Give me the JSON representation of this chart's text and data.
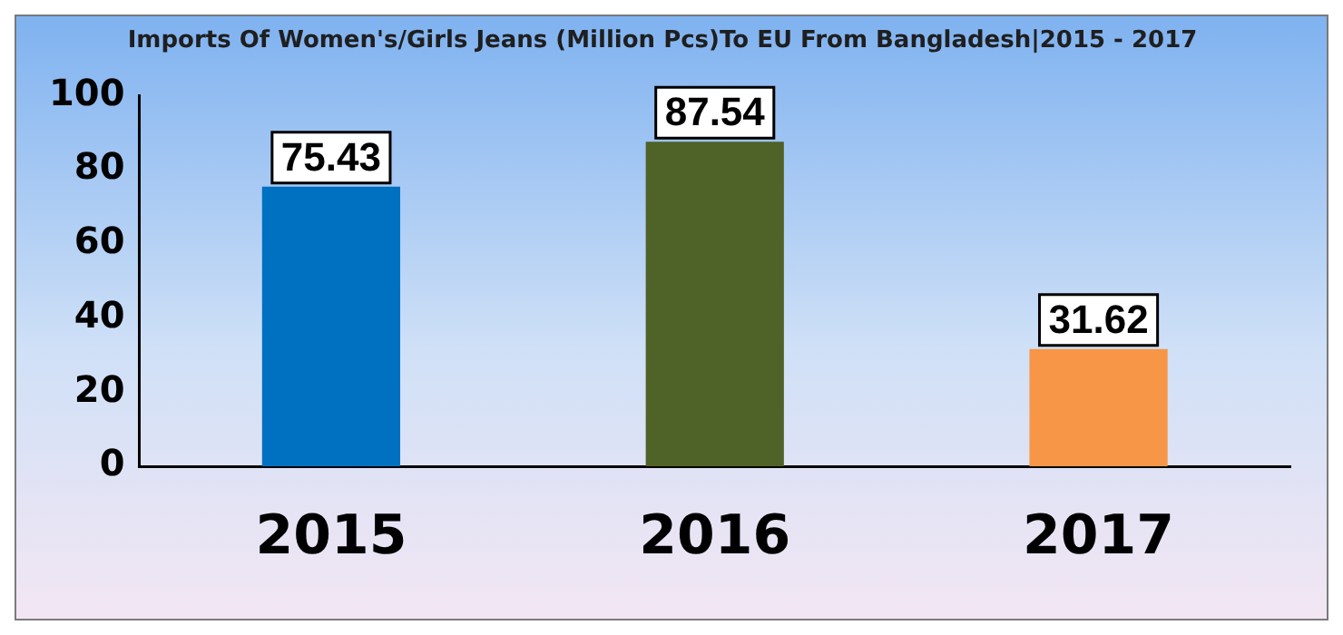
{
  "chart_data": {
    "type": "bar",
    "title": "Imports Of Women's/Girls Jeans (Million Pcs)To EU From Bangladesh|2015 - 2017",
    "categories": [
      "2015",
      "2016",
      "2017"
    ],
    "values": [
      75.43,
      87.54,
      31.62
    ],
    "colors": [
      "#0070c0",
      "#4f6228",
      "#f79646"
    ],
    "ylim": [
      0,
      100
    ],
    "yticks": [
      0,
      20,
      40,
      60,
      80,
      100
    ],
    "grid": false,
    "legend": false,
    "data_labels": true
  }
}
